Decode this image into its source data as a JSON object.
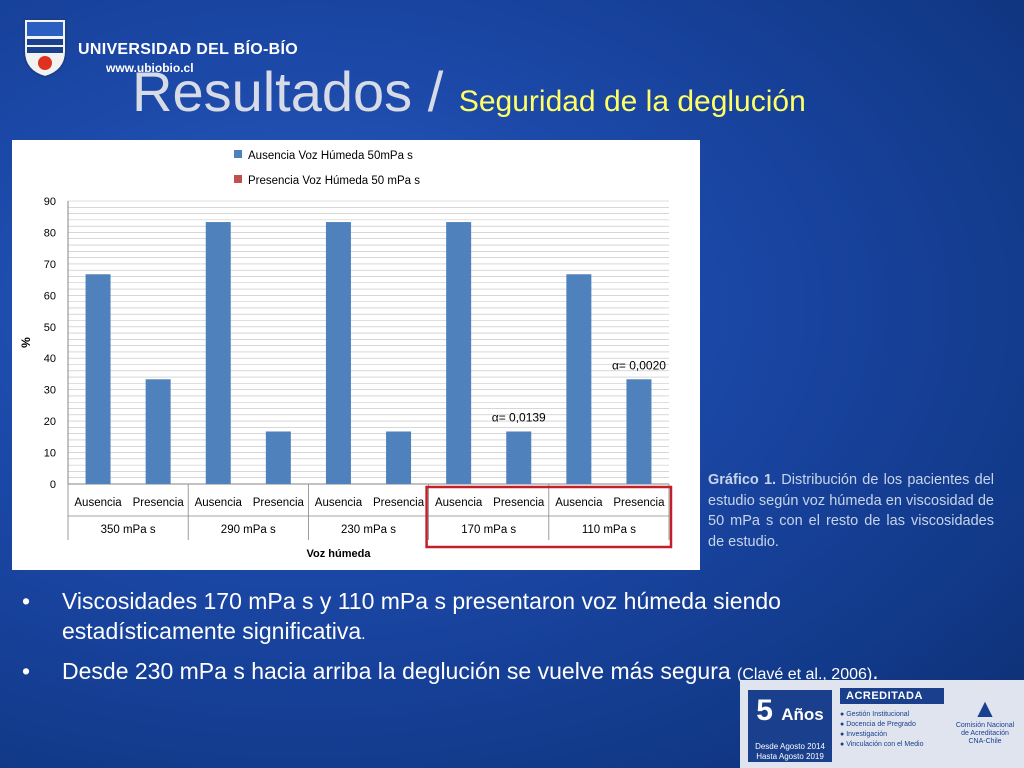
{
  "header": {
    "university": "UNIVERSIDAD DEL BÍO-BÍO",
    "url": "www.ubiobio.cl",
    "title_main": "Resultados /",
    "title_sub": "Seguridad de la deglución"
  },
  "chart_data": {
    "type": "bar",
    "title": "",
    "ylabel": "%",
    "xlabel": "Voz húmeda",
    "ylim": [
      0,
      90
    ],
    "yticks": [
      0,
      10,
      20,
      30,
      40,
      50,
      60,
      70,
      80,
      90
    ],
    "groups": [
      "350 mPa s",
      "290 mPa s",
      "230 mPa s",
      "170 mPa s",
      "110 mPa s"
    ],
    "categories": [
      "Ausencia",
      "Presencia",
      "Ausencia",
      "Presencia",
      "Ausencia",
      "Presencia",
      "Ausencia",
      "Presencia",
      "Ausencia",
      "Presencia"
    ],
    "values": [
      66.7,
      33.3,
      83.3,
      16.7,
      83.3,
      16.7,
      83.3,
      16.7,
      66.7,
      33.3
    ],
    "legend": [
      {
        "name": "Ausencia Voz Húmeda 50mPa s",
        "color": "#4f81bd"
      },
      {
        "name": "Presencia Voz Húmeda 50 mPa s",
        "color": "#c0504d"
      }
    ],
    "legend_position": "top",
    "annotations": [
      {
        "text": "α= 0,0139",
        "category_index": 7
      },
      {
        "text": "α= 0,0020",
        "category_index": 9
      }
    ],
    "bar_color": "#4f81bd",
    "highlight_color": "#c0202a",
    "highlight_groups": [
      "170 mPa s",
      "110 mPa s"
    ],
    "grid": true
  },
  "caption": {
    "label": "Gráfico 1.",
    "text": "Distribución de los pacientes del estudio según voz húmeda en viscosidad de 50 mPa s con el resto de las viscosidades de estudio."
  },
  "bullets": [
    {
      "text": "Viscosidades 170 mPa s y 110 mPa s presentaron voz húmeda siendo estadísticamente significativa",
      "tail": "."
    },
    {
      "text": "Desde 230 mPa s hacia arriba la deglución se vuelve más segura",
      "cite": "(Clavé et al., 2006)",
      "tail": "."
    }
  ],
  "badge": {
    "years_number": "5",
    "years_word": "Años",
    "since": "Desde Agosto 2014",
    "until": "Hasta Agosto 2019",
    "status": "ACREDITADA",
    "areas": [
      "Gestión Institucional",
      "Docencia de Pregrado",
      "Investigación",
      "Vinculación con el Medio"
    ],
    "org_line1": "Comisión Nacional",
    "org_line2": "de Acreditación",
    "org_line3": "CNA-Chile"
  },
  "colors": {
    "background": "#1b47a6",
    "title": "#d6dbe6",
    "subtitle": "#ffff66",
    "bar": "#4f81bd"
  }
}
